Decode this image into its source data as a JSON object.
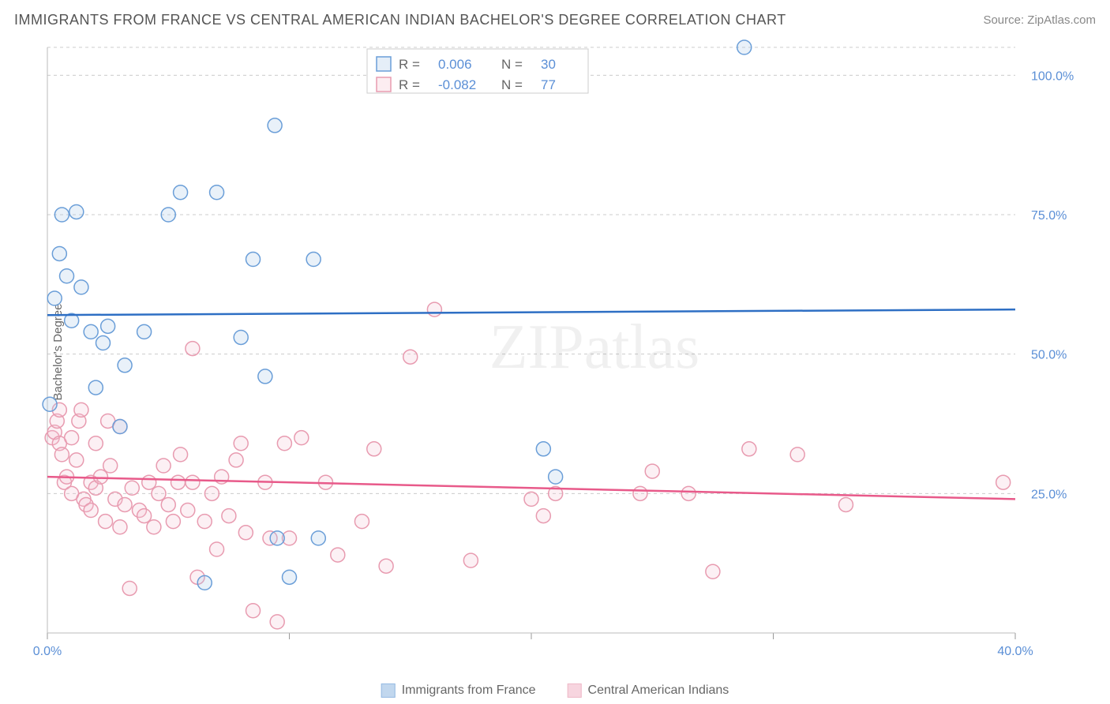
{
  "header": {
    "title": "IMMIGRANTS FROM FRANCE VS CENTRAL AMERICAN INDIAN BACHELOR'S DEGREE CORRELATION CHART",
    "source": "Source: ZipAtlas.com"
  },
  "ylabel": "Bachelor's Degree",
  "watermark": "ZIPatlas",
  "chart": {
    "type": "scatter",
    "background_color": "#ffffff",
    "grid_color": "#cccccc",
    "xlim": [
      0,
      40
    ],
    "ylim": [
      0,
      105
    ],
    "xticks": [
      0,
      10,
      20,
      30,
      40
    ],
    "xtick_labels": [
      "0.0%",
      "",
      "",
      "",
      "40.0%"
    ],
    "yticks": [
      25,
      50,
      75,
      100
    ],
    "ytick_labels": [
      "25.0%",
      "50.0%",
      "75.0%",
      "100.0%"
    ],
    "marker_radius": 9,
    "series": [
      {
        "name": "Immigrants from France",
        "color_stroke": "#6a9ed8",
        "color_fill": "#a8c7e8",
        "R": "0.006",
        "N": "30",
        "trend": {
          "y_start": 57,
          "y_end": 58
        },
        "trend_color": "#2e6fc4",
        "points": [
          [
            0.1,
            41
          ],
          [
            0.3,
            60
          ],
          [
            0.5,
            68
          ],
          [
            0.6,
            75
          ],
          [
            0.8,
            64
          ],
          [
            1.0,
            56
          ],
          [
            1.2,
            75.5
          ],
          [
            1.4,
            62
          ],
          [
            1.8,
            54
          ],
          [
            2.0,
            44
          ],
          [
            2.3,
            52
          ],
          [
            2.5,
            55
          ],
          [
            3.0,
            37
          ],
          [
            3.2,
            48
          ],
          [
            4.0,
            54
          ],
          [
            5.0,
            75
          ],
          [
            5.5,
            79
          ],
          [
            6.5,
            9
          ],
          [
            7.0,
            79
          ],
          [
            8.0,
            53
          ],
          [
            8.5,
            67
          ],
          [
            9.0,
            46
          ],
          [
            9.4,
            91
          ],
          [
            9.5,
            17
          ],
          [
            10.0,
            10
          ],
          [
            11.0,
            67
          ],
          [
            11.2,
            17
          ],
          [
            20.5,
            33
          ],
          [
            21.0,
            28
          ],
          [
            28.8,
            105
          ]
        ]
      },
      {
        "name": "Central American Indians",
        "color_stroke": "#e89bb0",
        "color_fill": "#f5c4d2",
        "R": "-0.082",
        "N": "77",
        "trend": {
          "y_start": 28,
          "y_end": 24
        },
        "trend_color": "#e85a8a",
        "points": [
          [
            0.2,
            35
          ],
          [
            0.3,
            36
          ],
          [
            0.4,
            38
          ],
          [
            0.5,
            40
          ],
          [
            0.5,
            34
          ],
          [
            0.6,
            32
          ],
          [
            0.7,
            27
          ],
          [
            0.8,
            28
          ],
          [
            1.0,
            25
          ],
          [
            1.0,
            35
          ],
          [
            1.2,
            31
          ],
          [
            1.3,
            38
          ],
          [
            1.4,
            40
          ],
          [
            1.5,
            24
          ],
          [
            1.6,
            23
          ],
          [
            1.8,
            22
          ],
          [
            1.8,
            27
          ],
          [
            2.0,
            26
          ],
          [
            2.0,
            34
          ],
          [
            2.2,
            28
          ],
          [
            2.4,
            20
          ],
          [
            2.5,
            38
          ],
          [
            2.6,
            30
          ],
          [
            2.8,
            24
          ],
          [
            3.0,
            19
          ],
          [
            3.0,
            37
          ],
          [
            3.2,
            23
          ],
          [
            3.4,
            8
          ],
          [
            3.5,
            26
          ],
          [
            3.8,
            22
          ],
          [
            4.0,
            21
          ],
          [
            4.2,
            27
          ],
          [
            4.4,
            19
          ],
          [
            4.6,
            25
          ],
          [
            4.8,
            30
          ],
          [
            5.0,
            23
          ],
          [
            5.2,
            20
          ],
          [
            5.4,
            27
          ],
          [
            5.5,
            32
          ],
          [
            5.8,
            22
          ],
          [
            6.0,
            27
          ],
          [
            6.0,
            51
          ],
          [
            6.2,
            10
          ],
          [
            6.5,
            20
          ],
          [
            6.8,
            25
          ],
          [
            7.0,
            15
          ],
          [
            7.2,
            28
          ],
          [
            7.5,
            21
          ],
          [
            7.8,
            31
          ],
          [
            8.0,
            34
          ],
          [
            8.2,
            18
          ],
          [
            8.5,
            4
          ],
          [
            9.0,
            27
          ],
          [
            9.2,
            17
          ],
          [
            9.5,
            2
          ],
          [
            9.8,
            34
          ],
          [
            10.0,
            17
          ],
          [
            10.5,
            35
          ],
          [
            11.5,
            27
          ],
          [
            12.0,
            14
          ],
          [
            13.0,
            20
          ],
          [
            13.5,
            33
          ],
          [
            14.0,
            12
          ],
          [
            15.0,
            49.5
          ],
          [
            16.0,
            58
          ],
          [
            17.5,
            13
          ],
          [
            20.0,
            24
          ],
          [
            20.5,
            21
          ],
          [
            21.0,
            25
          ],
          [
            24.5,
            25
          ],
          [
            25.0,
            29
          ],
          [
            26.5,
            25
          ],
          [
            27.5,
            11
          ],
          [
            29.0,
            33
          ],
          [
            31.0,
            32
          ],
          [
            33.0,
            23
          ],
          [
            39.5,
            27
          ]
        ]
      }
    ]
  },
  "legend_top": {
    "R_label": "R  =",
    "N_label": "N  ="
  },
  "legend_bottom": [
    {
      "label": "Immigrants from France",
      "stroke": "#6a9ed8",
      "fill": "#a8c7e8"
    },
    {
      "label": "Central American Indians",
      "stroke": "#e89bb0",
      "fill": "#f5c4d2"
    }
  ]
}
